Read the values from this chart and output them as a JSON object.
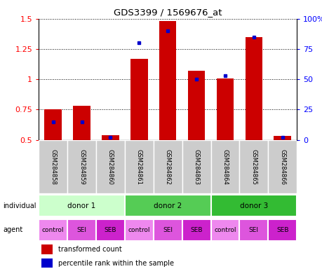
{
  "title": "GDS3399 / 1569676_at",
  "samples": [
    "GSM284858",
    "GSM284859",
    "GSM284860",
    "GSM284861",
    "GSM284862",
    "GSM284863",
    "GSM284864",
    "GSM284865",
    "GSM284866"
  ],
  "red_values": [
    0.755,
    0.78,
    0.54,
    1.17,
    1.48,
    1.07,
    1.01,
    1.35,
    0.53
  ],
  "blue_pct": [
    15,
    15,
    2,
    80,
    90,
    50,
    53,
    85,
    2
  ],
  "ylim_left": [
    0.5,
    1.5
  ],
  "ylim_right": [
    0,
    100
  ],
  "yticks_left": [
    0.5,
    0.75,
    1.0,
    1.25,
    1.5
  ],
  "ytick_labels_left": [
    "0.5",
    "0.75",
    "1",
    "1.25",
    "1.5"
  ],
  "yticks_right": [
    0,
    25,
    50,
    75,
    100
  ],
  "ytick_labels_right": [
    "0",
    "25",
    "50",
    "75",
    "100%"
  ],
  "individuals": [
    {
      "label": "donor 1",
      "start": 0,
      "end": 3,
      "color": "#ccffcc"
    },
    {
      "label": "donor 2",
      "start": 3,
      "end": 6,
      "color": "#55cc55"
    },
    {
      "label": "donor 3",
      "start": 6,
      "end": 9,
      "color": "#33bb33"
    }
  ],
  "agents": [
    "control",
    "SEI",
    "SEB",
    "control",
    "SEI",
    "SEB",
    "control",
    "SEI",
    "SEB"
  ],
  "agent_colors": [
    "#ee88ee",
    "#dd55dd",
    "#cc22cc",
    "#ee88ee",
    "#dd55dd",
    "#cc22cc",
    "#ee88ee",
    "#dd55dd",
    "#cc22cc"
  ],
  "bar_color": "#cc0000",
  "dot_color": "#0000cc",
  "bar_width": 0.6,
  "legend_red": "transformed count",
  "legend_blue": "percentile rank within the sample"
}
